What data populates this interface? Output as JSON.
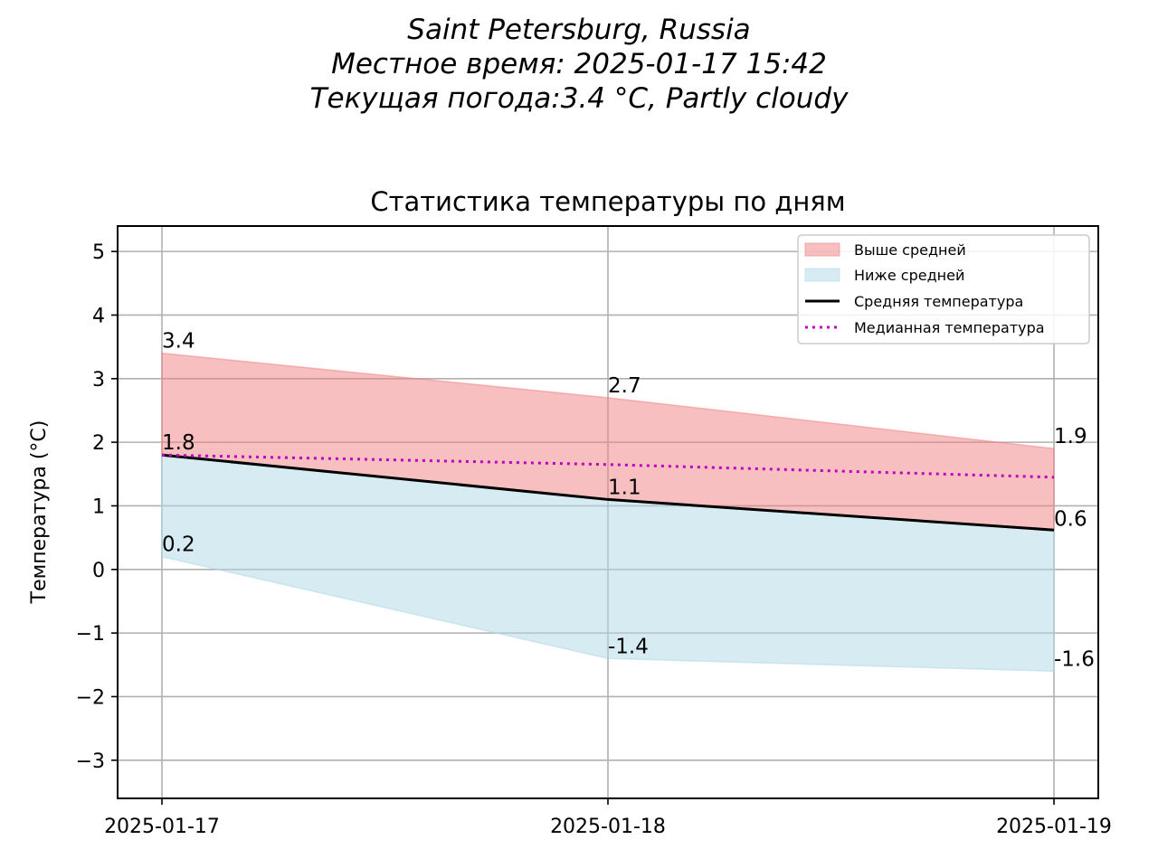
{
  "header": {
    "location": "Saint Petersburg, Russia",
    "local_time": "Местное время: 2025-01-17 15:42",
    "current_weather": "Текущая погода:3.4 °C, Partly cloudy"
  },
  "colors": {
    "above_fill": "#f08080",
    "below_fill": "#add8e6",
    "mean_line": "#000000",
    "median_line": "#bf00bf",
    "grid": "#b0b0b0"
  },
  "chart_data": {
    "type": "area",
    "title": "Статистика температуры по дням",
    "xlabel": "",
    "ylabel": "Температура (°C)",
    "categories": [
      "2025-01-17",
      "2025-01-18",
      "2025-01-19"
    ],
    "ylim": [
      -3.6,
      5.4
    ],
    "yticks": [
      -3,
      -2,
      -1,
      0,
      1,
      2,
      3,
      4,
      5
    ],
    "ytick_labels": [
      "−3",
      "−2",
      "−1",
      "0",
      "1",
      "2",
      "3",
      "4",
      "5"
    ],
    "grid": true,
    "legend_position": "top-right",
    "series": [
      {
        "name": "Выше средней",
        "kind": "fill_between",
        "lower": [
          1.8,
          1.1,
          0.62
        ],
        "upper": [
          3.4,
          2.7,
          1.9
        ]
      },
      {
        "name": "Ниже средней",
        "kind": "fill_between",
        "lower": [
          0.2,
          -1.4,
          -1.6
        ],
        "upper": [
          1.8,
          1.1,
          0.62
        ]
      },
      {
        "name": "Средняя температура",
        "kind": "line",
        "style": "solid",
        "values": [
          1.8,
          1.1,
          0.62
        ]
      },
      {
        "name": "Медианная температура",
        "kind": "line",
        "style": "dotted",
        "values": [
          1.8,
          1.65,
          1.45
        ]
      }
    ],
    "annotations": [
      {
        "text": "3.4",
        "x": "2025-01-17",
        "y": 3.4
      },
      {
        "text": "1.8",
        "x": "2025-01-17",
        "y": 1.8
      },
      {
        "text": "0.2",
        "x": "2025-01-17",
        "y": 0.2
      },
      {
        "text": "2.7",
        "x": "2025-01-18",
        "y": 2.7
      },
      {
        "text": "1.1",
        "x": "2025-01-18",
        "y": 1.1
      },
      {
        "text": "-1.4",
        "x": "2025-01-18",
        "y": -1.4
      },
      {
        "text": "1.9",
        "x": "2025-01-19",
        "y": 1.9
      },
      {
        "text": "0.6",
        "x": "2025-01-19",
        "y": 0.6
      },
      {
        "text": "-1.6",
        "x": "2025-01-19",
        "y": -1.6
      }
    ]
  }
}
